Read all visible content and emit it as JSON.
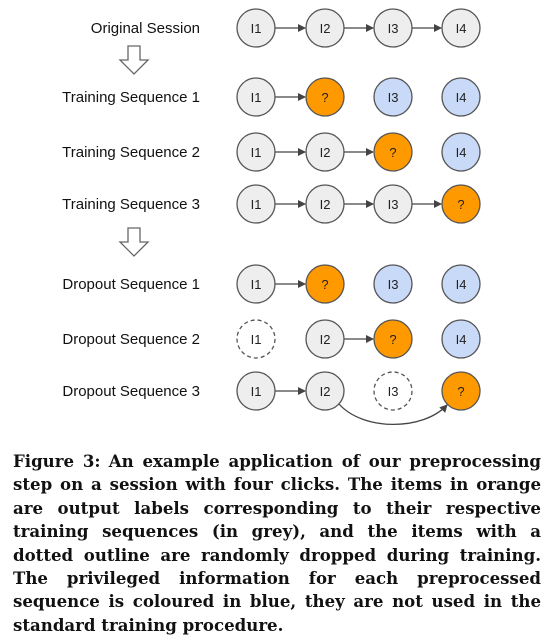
{
  "colors": {
    "grey_node": "#eeeeee",
    "orange_node": "#ff9900",
    "blue_node": "#c9daf8",
    "dropped_node": "#ffffff",
    "stroke": "#555555"
  },
  "rows": [
    {
      "label": "Original Session",
      "nodes": [
        {
          "text": "I1",
          "kind": "grey"
        },
        {
          "text": "I2",
          "kind": "grey"
        },
        {
          "text": "I3",
          "kind": "grey"
        },
        {
          "text": "I4",
          "kind": "grey"
        }
      ],
      "arrows": [
        [
          0,
          1
        ],
        [
          1,
          2
        ],
        [
          2,
          3
        ]
      ]
    },
    {
      "label": "Training Sequence 1",
      "nodes": [
        {
          "text": "I1",
          "kind": "grey"
        },
        {
          "text": "?",
          "kind": "orange"
        },
        {
          "text": "I3",
          "kind": "blue"
        },
        {
          "text": "I4",
          "kind": "blue"
        }
      ],
      "arrows": [
        [
          0,
          1
        ]
      ]
    },
    {
      "label": "Training Sequence 2",
      "nodes": [
        {
          "text": "I1",
          "kind": "grey"
        },
        {
          "text": "I2",
          "kind": "grey"
        },
        {
          "text": "?",
          "kind": "orange"
        },
        {
          "text": "I4",
          "kind": "blue"
        }
      ],
      "arrows": [
        [
          0,
          1
        ],
        [
          1,
          2
        ]
      ]
    },
    {
      "label": "Training Sequence 3",
      "nodes": [
        {
          "text": "I1",
          "kind": "grey"
        },
        {
          "text": "I2",
          "kind": "grey"
        },
        {
          "text": "I3",
          "kind": "grey"
        },
        {
          "text": "?",
          "kind": "orange"
        }
      ],
      "arrows": [
        [
          0,
          1
        ],
        [
          1,
          2
        ],
        [
          2,
          3
        ]
      ]
    },
    {
      "label": "Dropout Sequence 1",
      "nodes": [
        {
          "text": "I1",
          "kind": "grey"
        },
        {
          "text": "?",
          "kind": "orange"
        },
        {
          "text": "I3",
          "kind": "blue"
        },
        {
          "text": "I4",
          "kind": "blue"
        }
      ],
      "arrows": [
        [
          0,
          1
        ]
      ]
    },
    {
      "label": "Dropout Sequence 2",
      "nodes": [
        {
          "text": "I1",
          "kind": "dropped"
        },
        {
          "text": "I2",
          "kind": "grey"
        },
        {
          "text": "?",
          "kind": "orange"
        },
        {
          "text": "I4",
          "kind": "blue"
        }
      ],
      "arrows": [
        [
          1,
          2
        ]
      ]
    },
    {
      "label": "Dropout Sequence 3",
      "nodes": [
        {
          "text": "I1",
          "kind": "grey"
        },
        {
          "text": "I2",
          "kind": "grey"
        },
        {
          "text": "I3",
          "kind": "dropped"
        },
        {
          "text": "?",
          "kind": "orange"
        }
      ],
      "arrows": [
        [
          0,
          1
        ]
      ],
      "curved_arrows": [
        [
          1,
          3
        ]
      ]
    }
  ],
  "caption": {
    "label": "Figure 3:",
    "text": "An example application of our preprocessing step on a session with four clicks. The items in orange are output labels corresponding to their respective training sequences (in grey), and the items with a dotted outline are randomly dropped during training. The privileged information for each preprocessed sequence is coloured in blue, they are not used in the standard training procedure."
  }
}
